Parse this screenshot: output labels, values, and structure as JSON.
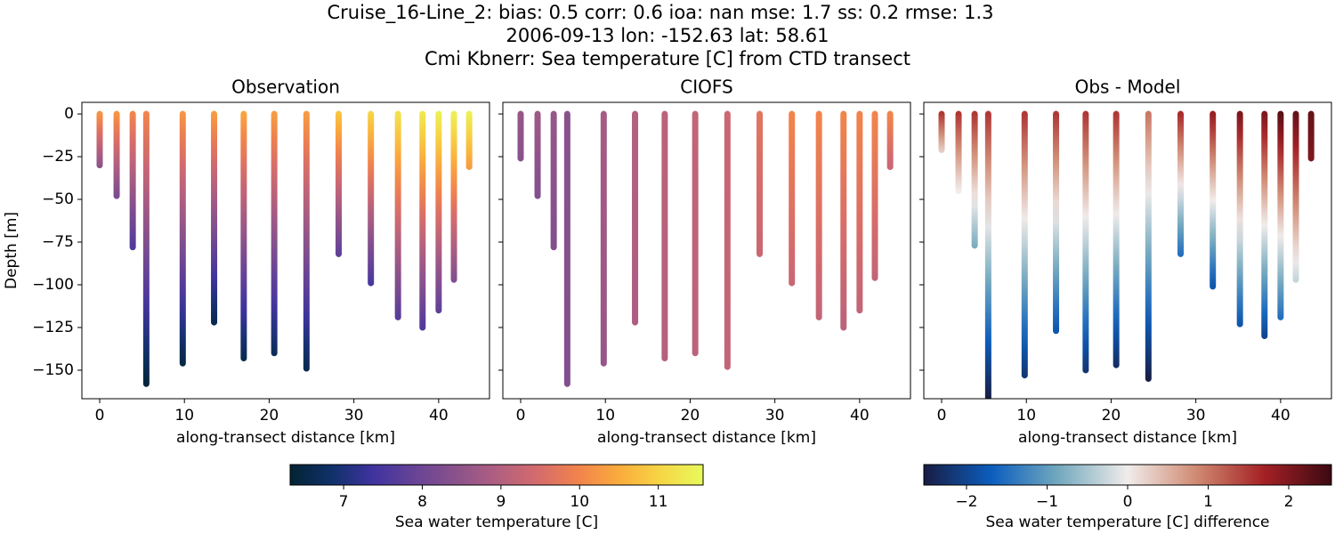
{
  "suptitle": [
    "Cruise_16-Line_2: bias: 0.5  corr: 0.6  ioa: nan  mse: 1.7  ss: 0.2  rmse: 1.3",
    "2006-09-13 lon: -152.63 lat: 58.61",
    "Cmi Kbnerr: Sea temperature [C] from CTD transect"
  ],
  "chart_data": [
    {
      "type": "profiles",
      "title": "Observation",
      "xlabel": "along-transect distance [km]",
      "ylabel": "Depth [m]",
      "cmap": "thermal",
      "xlim": [
        -2.1,
        46
      ],
      "ylim": [
        -166.7,
        6.8
      ],
      "xticks": [
        0,
        10,
        20,
        30,
        40
      ],
      "yticks": [
        0,
        {
          "value": -25,
          "label": "−25"
        },
        {
          "value": -50,
          "label": "−50"
        },
        {
          "value": -75,
          "label": "−75"
        },
        {
          "value": -100,
          "label": "−100"
        },
        {
          "value": -125,
          "label": "−125"
        },
        {
          "value": -150,
          "label": "−150"
        }
      ],
      "x": [
        0,
        2,
        3.9,
        5.5,
        9.8,
        13.5,
        17,
        20.6,
        24.4,
        28.2,
        32,
        35.2,
        38.1,
        40,
        41.8,
        43.6
      ],
      "depth": [
        -30,
        -48,
        -78,
        -158,
        -146,
        -122,
        -143,
        -140,
        -149,
        -82,
        -99,
        -119,
        -125,
        -115,
        -97,
        -31
      ],
      "surface": [
        10.2,
        10.2,
        10,
        10,
        10.2,
        10.3,
        10.4,
        10.3,
        10.3,
        10.8,
        11,
        11.2,
        11.3,
        11.4,
        11.4,
        11.4
      ],
      "bottom": [
        8.5,
        8.2,
        7.6,
        6.4,
        6.5,
        6.6,
        6.6,
        6.7,
        6.6,
        7.8,
        7.5,
        7.7,
        7.6,
        7.8,
        8.3,
        10.3
      ]
    },
    {
      "type": "profiles",
      "title": "CIOFS",
      "xlabel": "along-transect distance [km]",
      "cmap": "thermal",
      "xlim": [
        -2.1,
        46
      ],
      "ylim": [
        -166.7,
        6.8
      ],
      "xticks": [
        0,
        10,
        20,
        30,
        40
      ],
      "yticks": [
        0,
        -25,
        -50,
        -75,
        -100,
        -125,
        -150
      ],
      "ytick_labels": false,
      "x": [
        0,
        2,
        3.9,
        5.5,
        9.8,
        13.5,
        17,
        20.6,
        24.4,
        28.2,
        32,
        35.2,
        38.1,
        40,
        41.8,
        43.6
      ],
      "depth": [
        -26,
        -48,
        -78,
        -158,
        -146,
        -122,
        -143,
        -140,
        -148,
        -82,
        -99,
        -119,
        -125,
        -115,
        -96,
        -31
      ],
      "surface": [
        8.6,
        8.7,
        8.6,
        8.4,
        8.8,
        9.0,
        9.1,
        9.2,
        9.3,
        9.7,
        10.0,
        10.0,
        10.0,
        10.0,
        10.0,
        10.0
      ],
      "bottom": [
        8.4,
        8.3,
        8.3,
        8.3,
        8.6,
        8.9,
        9.0,
        9.1,
        9.2,
        9.3,
        9.3,
        9.2,
        9.1,
        9.2,
        9.2,
        9.3
      ]
    },
    {
      "type": "profiles",
      "title": "Obs - Model",
      "xlabel": "along-transect distance [km]",
      "cmap": "balance",
      "xlim": [
        -2.1,
        46
      ],
      "ylim": [
        -166.7,
        6.8
      ],
      "xticks": [
        0,
        10,
        20,
        30,
        40
      ],
      "yticks": [
        0,
        -25,
        -50,
        -75,
        -100,
        -125,
        -150
      ],
      "ytick_labels": false,
      "x": [
        0,
        2,
        3.9,
        5.5,
        9.8,
        13.5,
        17,
        20.6,
        24.4,
        28.2,
        32,
        35.2,
        38.1,
        40,
        41.8,
        43.6
      ],
      "depth": [
        -21,
        -45,
        -77,
        -166,
        -153,
        -127,
        -150,
        -147,
        -155,
        -82,
        -101,
        -123,
        -130,
        -119,
        -97,
        -26
      ],
      "surface": [
        1.5,
        1.5,
        1.5,
        1.5,
        1.5,
        1.5,
        1.5,
        1.5,
        1.0,
        1.6,
        1.8,
        2.0,
        2.0,
        2.3,
        2.2,
        2.2
      ],
      "bottom": [
        0.3,
        0,
        -0.8,
        -2.5,
        -2.2,
        -1.8,
        -2.2,
        -2.3,
        -2.5,
        -1.5,
        -1.8,
        -1.8,
        -2.0,
        -1.5,
        -0.3,
        2.0
      ]
    }
  ],
  "colorbars": [
    {
      "cmap": "thermal",
      "label": "Sea water temperature [C]",
      "clim": [
        6.32,
        11.57
      ],
      "ticks": [
        7,
        8,
        9,
        10,
        11
      ],
      "colors": [
        "#032333",
        "#0f3169",
        "#3f339f",
        "#674396",
        "#8a528c",
        "#b05f81",
        "#d56b6c",
        "#f2844b",
        "#fbad3c",
        "#f6d746",
        "#e8fa5b"
      ]
    },
    {
      "cmap": "balance",
      "label": "Sea water temperature [C] difference",
      "clim": [
        -2.53,
        2.53
      ],
      "ticks": [
        {
          "value": -2,
          "label": "−2"
        },
        {
          "value": -1,
          "label": "−1"
        },
        0,
        1,
        2
      ],
      "colors": [
        "#181c43",
        "#0c5ebe",
        "#75aabe",
        "#f1eceb",
        "#d08b73",
        "#a52125",
        "#3c0912"
      ]
    }
  ]
}
